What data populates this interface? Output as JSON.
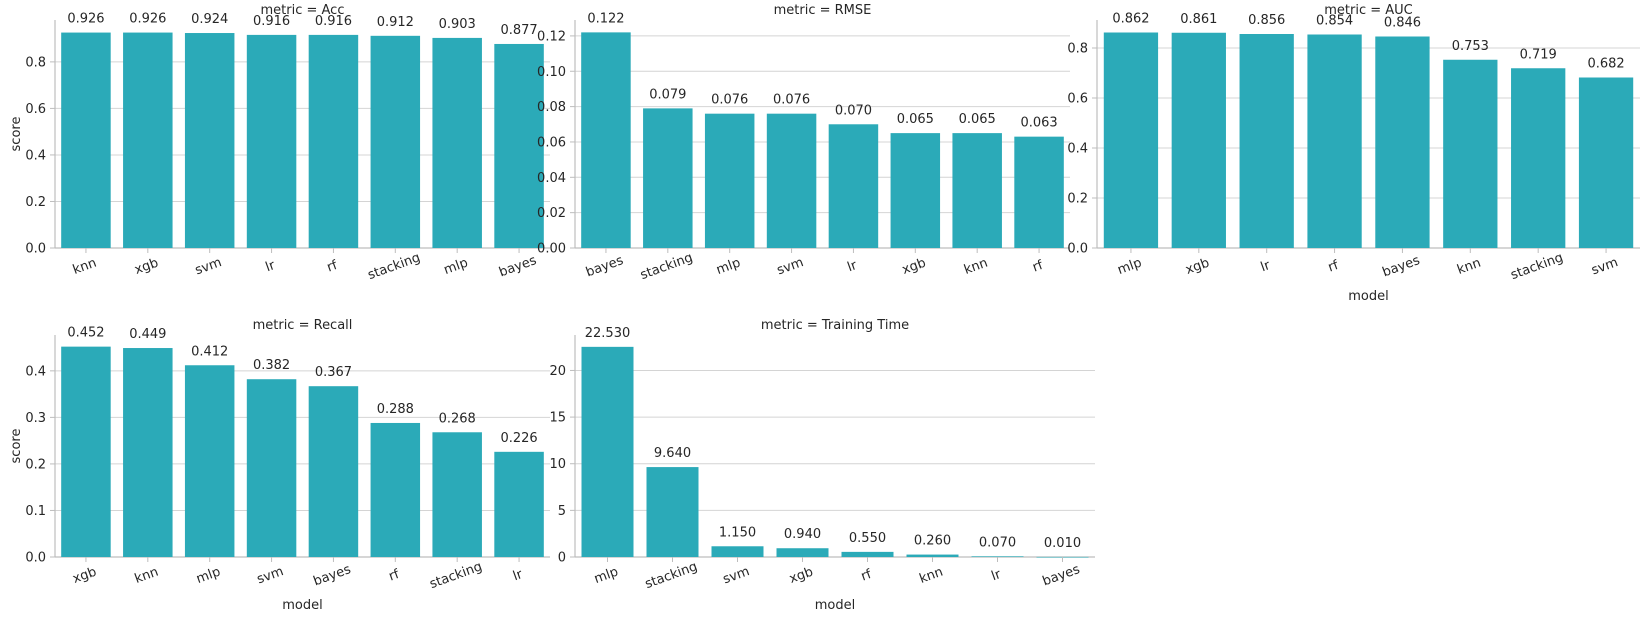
{
  "colors": {
    "bar": "#2baab8",
    "text": "#262626",
    "grid": "#d4d4d4"
  },
  "chart_data": [
    {
      "type": "bar",
      "title": "metric = Acc",
      "categories": [
        "knn",
        "xgb",
        "svm",
        "lr",
        "rf",
        "stacking",
        "mlp",
        "bayes"
      ],
      "values": [
        0.926,
        0.926,
        0.924,
        0.916,
        0.916,
        0.912,
        0.903,
        0.877
      ],
      "data_labels": [
        "0.926",
        "0.926",
        "0.924",
        "0.916",
        "0.916",
        "0.912",
        "0.903",
        "0.877"
      ],
      "yticks": [
        0.0,
        0.2,
        0.4,
        0.6,
        0.8
      ],
      "ytick_labels": [
        "0.0",
        "0.2",
        "0.4",
        "0.6",
        "0.8"
      ],
      "ylim": [
        0,
        0.98
      ],
      "ylabel": "score",
      "xlabel": "",
      "grid": "y"
    },
    {
      "type": "bar",
      "title": "metric = RMSE",
      "categories": [
        "bayes",
        "stacking",
        "mlp",
        "svm",
        "lr",
        "xgb",
        "knn",
        "rf"
      ],
      "values": [
        0.122,
        0.079,
        0.076,
        0.076,
        0.07,
        0.065,
        0.065,
        0.063
      ],
      "data_labels": [
        "0.122",
        "0.079",
        "0.076",
        "0.076",
        "0.070",
        "0.065",
        "0.065",
        "0.063"
      ],
      "yticks": [
        0.0,
        0.02,
        0.04,
        0.06,
        0.08,
        0.1,
        0.12
      ],
      "ytick_labels": [
        "0.00",
        "0.02",
        "0.04",
        "0.06",
        "0.08",
        "0.10",
        "0.12"
      ],
      "ylim": [
        0,
        0.129
      ],
      "ylabel": "",
      "xlabel": "",
      "grid": "y"
    },
    {
      "type": "bar",
      "title": "metric = AUC",
      "categories": [
        "mlp",
        "xgb",
        "lr",
        "rf",
        "bayes",
        "knn",
        "stacking",
        "svm"
      ],
      "values": [
        0.862,
        0.861,
        0.856,
        0.854,
        0.846,
        0.753,
        0.719,
        0.682
      ],
      "data_labels": [
        "0.862",
        "0.861",
        "0.856",
        "0.854",
        "0.846",
        "0.753",
        "0.719",
        "0.682"
      ],
      "yticks": [
        0.0,
        0.2,
        0.4,
        0.6,
        0.8
      ],
      "ytick_labels": [
        "0.0",
        "0.2",
        "0.4",
        "0.6",
        "0.8"
      ],
      "ylim": [
        0,
        0.912
      ],
      "ylabel": "",
      "xlabel": "model",
      "grid": "y"
    },
    {
      "type": "bar",
      "title": "metric = Recall",
      "categories": [
        "xgb",
        "knn",
        "mlp",
        "svm",
        "bayes",
        "rf",
        "stacking",
        "lr"
      ],
      "values": [
        0.452,
        0.449,
        0.412,
        0.382,
        0.367,
        0.288,
        0.268,
        0.226
      ],
      "data_labels": [
        "0.452",
        "0.449",
        "0.412",
        "0.382",
        "0.367",
        "0.288",
        "0.268",
        "0.226"
      ],
      "yticks": [
        0.0,
        0.1,
        0.2,
        0.3,
        0.4
      ],
      "ytick_labels": [
        "0.0",
        "0.1",
        "0.2",
        "0.3",
        "0.4"
      ],
      "ylim": [
        0,
        0.477
      ],
      "ylabel": "score",
      "xlabel": "model",
      "grid": "y"
    },
    {
      "type": "bar",
      "title": "metric = Training Time",
      "categories": [
        "mlp",
        "stacking",
        "svm",
        "xgb",
        "rf",
        "knn",
        "lr",
        "bayes"
      ],
      "values": [
        22.53,
        9.64,
        1.15,
        0.94,
        0.55,
        0.26,
        0.07,
        0.01
      ],
      "data_labels": [
        "22.530",
        "9.640",
        "1.150",
        "0.940",
        "0.550",
        "0.260",
        "0.070",
        "0.010"
      ],
      "yticks": [
        0,
        5,
        10,
        15,
        20
      ],
      "ytick_labels": [
        "0",
        "5",
        "10",
        "15",
        "20"
      ],
      "ylim": [
        0,
        23.8
      ],
      "ylabel": "",
      "xlabel": "model",
      "grid": "y"
    }
  ]
}
